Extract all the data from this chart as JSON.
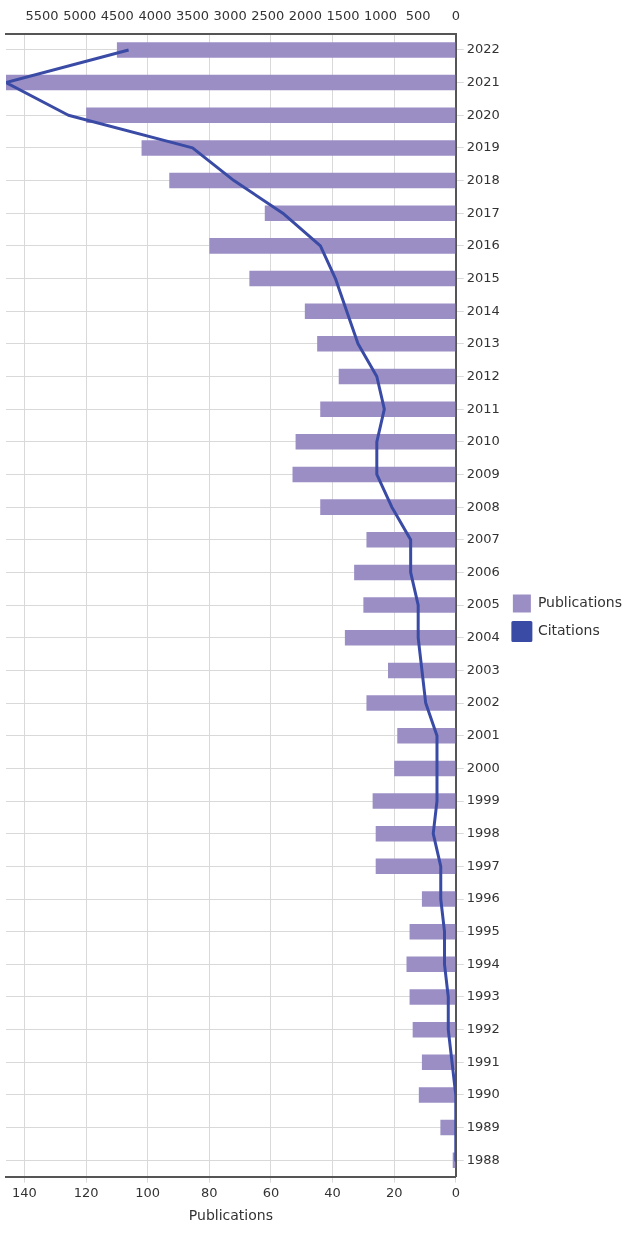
{
  "chart_data": {
    "type": "bar",
    "orientation": "horizontal",
    "xlabel": "Publications",
    "categories": [
      "2022",
      "2021",
      "2020",
      "2019",
      "2018",
      "2017",
      "2016",
      "2015",
      "2014",
      "2013",
      "2012",
      "2011",
      "2010",
      "2009",
      "2008",
      "2007",
      "2006",
      "2005",
      "2004",
      "2003",
      "2002",
      "2001",
      "2000",
      "1999",
      "1998",
      "1997",
      "1996",
      "1995",
      "1994",
      "1993",
      "1992",
      "1991",
      "1990",
      "1989",
      "1988"
    ],
    "series": [
      {
        "name": "Publications",
        "type": "bar",
        "color": "#9b8ec4",
        "values": [
          110,
          146,
          120,
          102,
          93,
          62,
          80,
          67,
          49,
          45,
          38,
          44,
          52,
          53,
          44,
          29,
          33,
          30,
          36,
          22,
          29,
          19,
          20,
          27,
          26,
          26,
          11,
          15,
          16,
          15,
          14,
          11,
          12,
          5,
          1
        ]
      },
      {
        "name": "Citations",
        "type": "line",
        "axis": "x2",
        "color": "#3a4ba6",
        "values": [
          4350,
          5980,
          5150,
          3500,
          2950,
          2300,
          1800,
          1600,
          1450,
          1300,
          1050,
          950,
          1050,
          1050,
          850,
          600,
          600,
          500,
          500,
          450,
          400,
          250,
          250,
          250,
          300,
          200,
          200,
          150,
          150,
          100,
          100,
          50,
          0,
          0,
          0
        ]
      }
    ],
    "xlim": [
      146,
      0
    ],
    "xticks": [
      140,
      120,
      100,
      80,
      60,
      40,
      20,
      0
    ],
    "x2lim": [
      5980,
      0
    ],
    "x2ticks": [
      5500,
      5000,
      4500,
      4000,
      3500,
      3000,
      2500,
      2000,
      1500,
      1000,
      500,
      0
    ],
    "grid": true,
    "legend": "right",
    "marker": "none",
    "line_style": "solid"
  }
}
